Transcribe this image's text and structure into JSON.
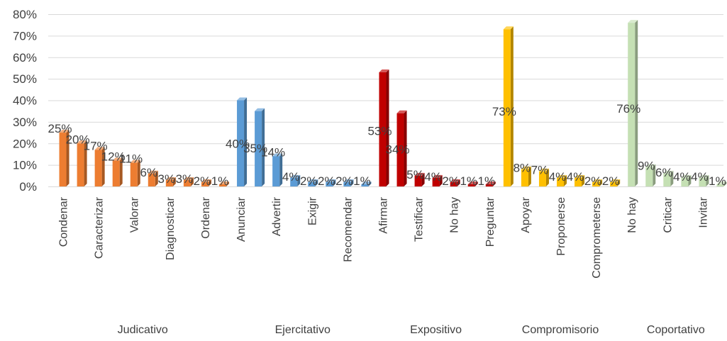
{
  "chart_data": {
    "type": "bar",
    "title": "",
    "xlabel": "",
    "ylabel": "",
    "ylim": [
      0,
      80
    ],
    "y_ticks": [
      "0%",
      "10%",
      "20%",
      "30%",
      "40%",
      "50%",
      "60%",
      "70%",
      "80%"
    ],
    "grid": true,
    "legend": "none",
    "style": "3d-column",
    "groups": [
      {
        "name": "Judicativo",
        "color": "#ED7D31",
        "bars": [
          {
            "category": "Condenar",
            "value": 25,
            "label": "25%"
          },
          {
            "category": "",
            "value": 20,
            "label": "20%"
          },
          {
            "category": "Caracterizar",
            "value": 17,
            "label": "17%"
          },
          {
            "category": "",
            "value": 12,
            "label": "12%"
          },
          {
            "category": "Valorar",
            "value": 11,
            "label": "11%"
          },
          {
            "category": "",
            "value": 6,
            "label": "6%"
          },
          {
            "category": "Diagnosticar",
            "value": 3,
            "label": "3%"
          },
          {
            "category": "",
            "value": 3,
            "label": "3%"
          },
          {
            "category": "Ordenar",
            "value": 2,
            "label": "2%"
          },
          {
            "category": "",
            "value": 1,
            "label": "1%"
          }
        ]
      },
      {
        "name": "Ejercitativo",
        "color": "#5B9BD5",
        "bars": [
          {
            "category": "Anunciar",
            "value": 40,
            "label": "40%"
          },
          {
            "category": "",
            "value": 35,
            "label": "35%"
          },
          {
            "category": "Advertir",
            "value": 14,
            "label": "14%"
          },
          {
            "category": "",
            "value": 4,
            "label": "4%"
          },
          {
            "category": "Exigir",
            "value": 2,
            "label": "2%"
          },
          {
            "category": "",
            "value": 2,
            "label": "2%"
          },
          {
            "category": "Recomendar",
            "value": 2,
            "label": "2%"
          },
          {
            "category": "",
            "value": 1,
            "label": "1%"
          }
        ]
      },
      {
        "name": "Expositivo",
        "color": "#C00000",
        "bars": [
          {
            "category": "Afirmar",
            "value": 53,
            "label": "53%"
          },
          {
            "category": "",
            "value": 34,
            "label": "34%"
          },
          {
            "category": "Testificar",
            "value": 5,
            "label": "5%"
          },
          {
            "category": "",
            "value": 4,
            "label": "4%"
          },
          {
            "category": "No hay",
            "value": 2,
            "label": "2%"
          },
          {
            "category": "",
            "value": 1,
            "label": "1%"
          },
          {
            "category": "Preguntar",
            "value": 1,
            "label": "1%"
          }
        ]
      },
      {
        "name": "Compromisorio",
        "color": "#FFC000",
        "bars": [
          {
            "category": "",
            "value": 73,
            "label": "73%"
          },
          {
            "category": "Apoyar",
            "value": 8,
            "label": "8%"
          },
          {
            "category": "",
            "value": 7,
            "label": "7%"
          },
          {
            "category": "Proponerse",
            "value": 4,
            "label": "4%"
          },
          {
            "category": "",
            "value": 4,
            "label": "4%"
          },
          {
            "category": "Comprometerse",
            "value": 2,
            "label": "2%"
          },
          {
            "category": "",
            "value": 2,
            "label": "2%"
          }
        ]
      },
      {
        "name": "Coportativo",
        "color": "#C5E0B4",
        "bars": [
          {
            "category": "No hay",
            "value": 76,
            "label": "76%"
          },
          {
            "category": "",
            "value": 9,
            "label": "9%"
          },
          {
            "category": "Criticar",
            "value": 6,
            "label": "6%"
          },
          {
            "category": "",
            "value": 4,
            "label": "4%"
          },
          {
            "category": "Invitar",
            "value": 4,
            "label": "4%"
          },
          {
            "category": "",
            "value": 1,
            "label": "1%"
          }
        ]
      }
    ]
  }
}
